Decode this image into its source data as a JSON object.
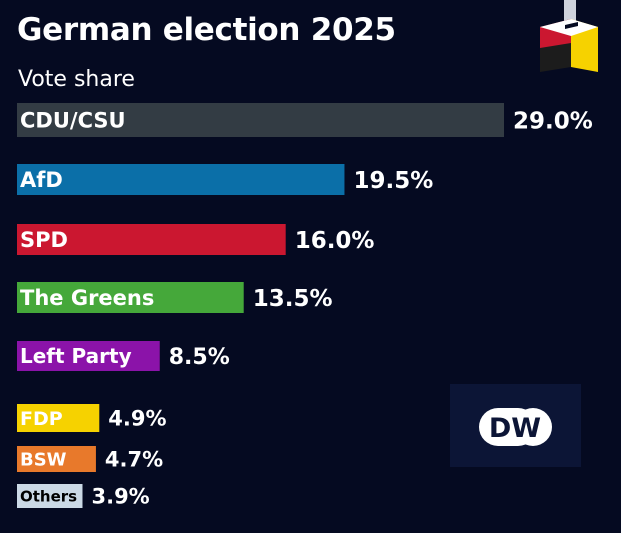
{
  "title": "German election 2025",
  "subtitle": "Vote share",
  "logo_text": "DW",
  "colors": {
    "background": "#050a21",
    "logo_box": "#0c1536"
  },
  "chart_data": {
    "type": "bar",
    "orientation": "horizontal",
    "title": "German election 2025",
    "subtitle": "Vote share",
    "value_suffix": "%",
    "xlim": [
      0,
      29.0
    ],
    "grid": false,
    "categories": [
      "CDU/CSU",
      "AfD",
      "SPD",
      "The Greens",
      "Left Party",
      "FDP",
      "BSW",
      "Others"
    ],
    "values": [
      29.0,
      19.5,
      16.0,
      13.5,
      8.5,
      4.9,
      4.7,
      3.9
    ],
    "value_labels": [
      "29.0%",
      "19.5%",
      "16.0%",
      "13.5%",
      "8.5%",
      "4.9%",
      "4.7%",
      "3.9%"
    ],
    "bar_colors": [
      "#333c44",
      "#0b6fa8",
      "#cb1730",
      "#45a83a",
      "#8b13a9",
      "#f6d200",
      "#e8792b",
      "#cbd9e6"
    ],
    "label_colors": [
      "#ffffff",
      "#ffffff",
      "#ffffff",
      "#ffffff",
      "#ffffff",
      "#ffffff",
      "#ffffff",
      "#000000"
    ]
  }
}
